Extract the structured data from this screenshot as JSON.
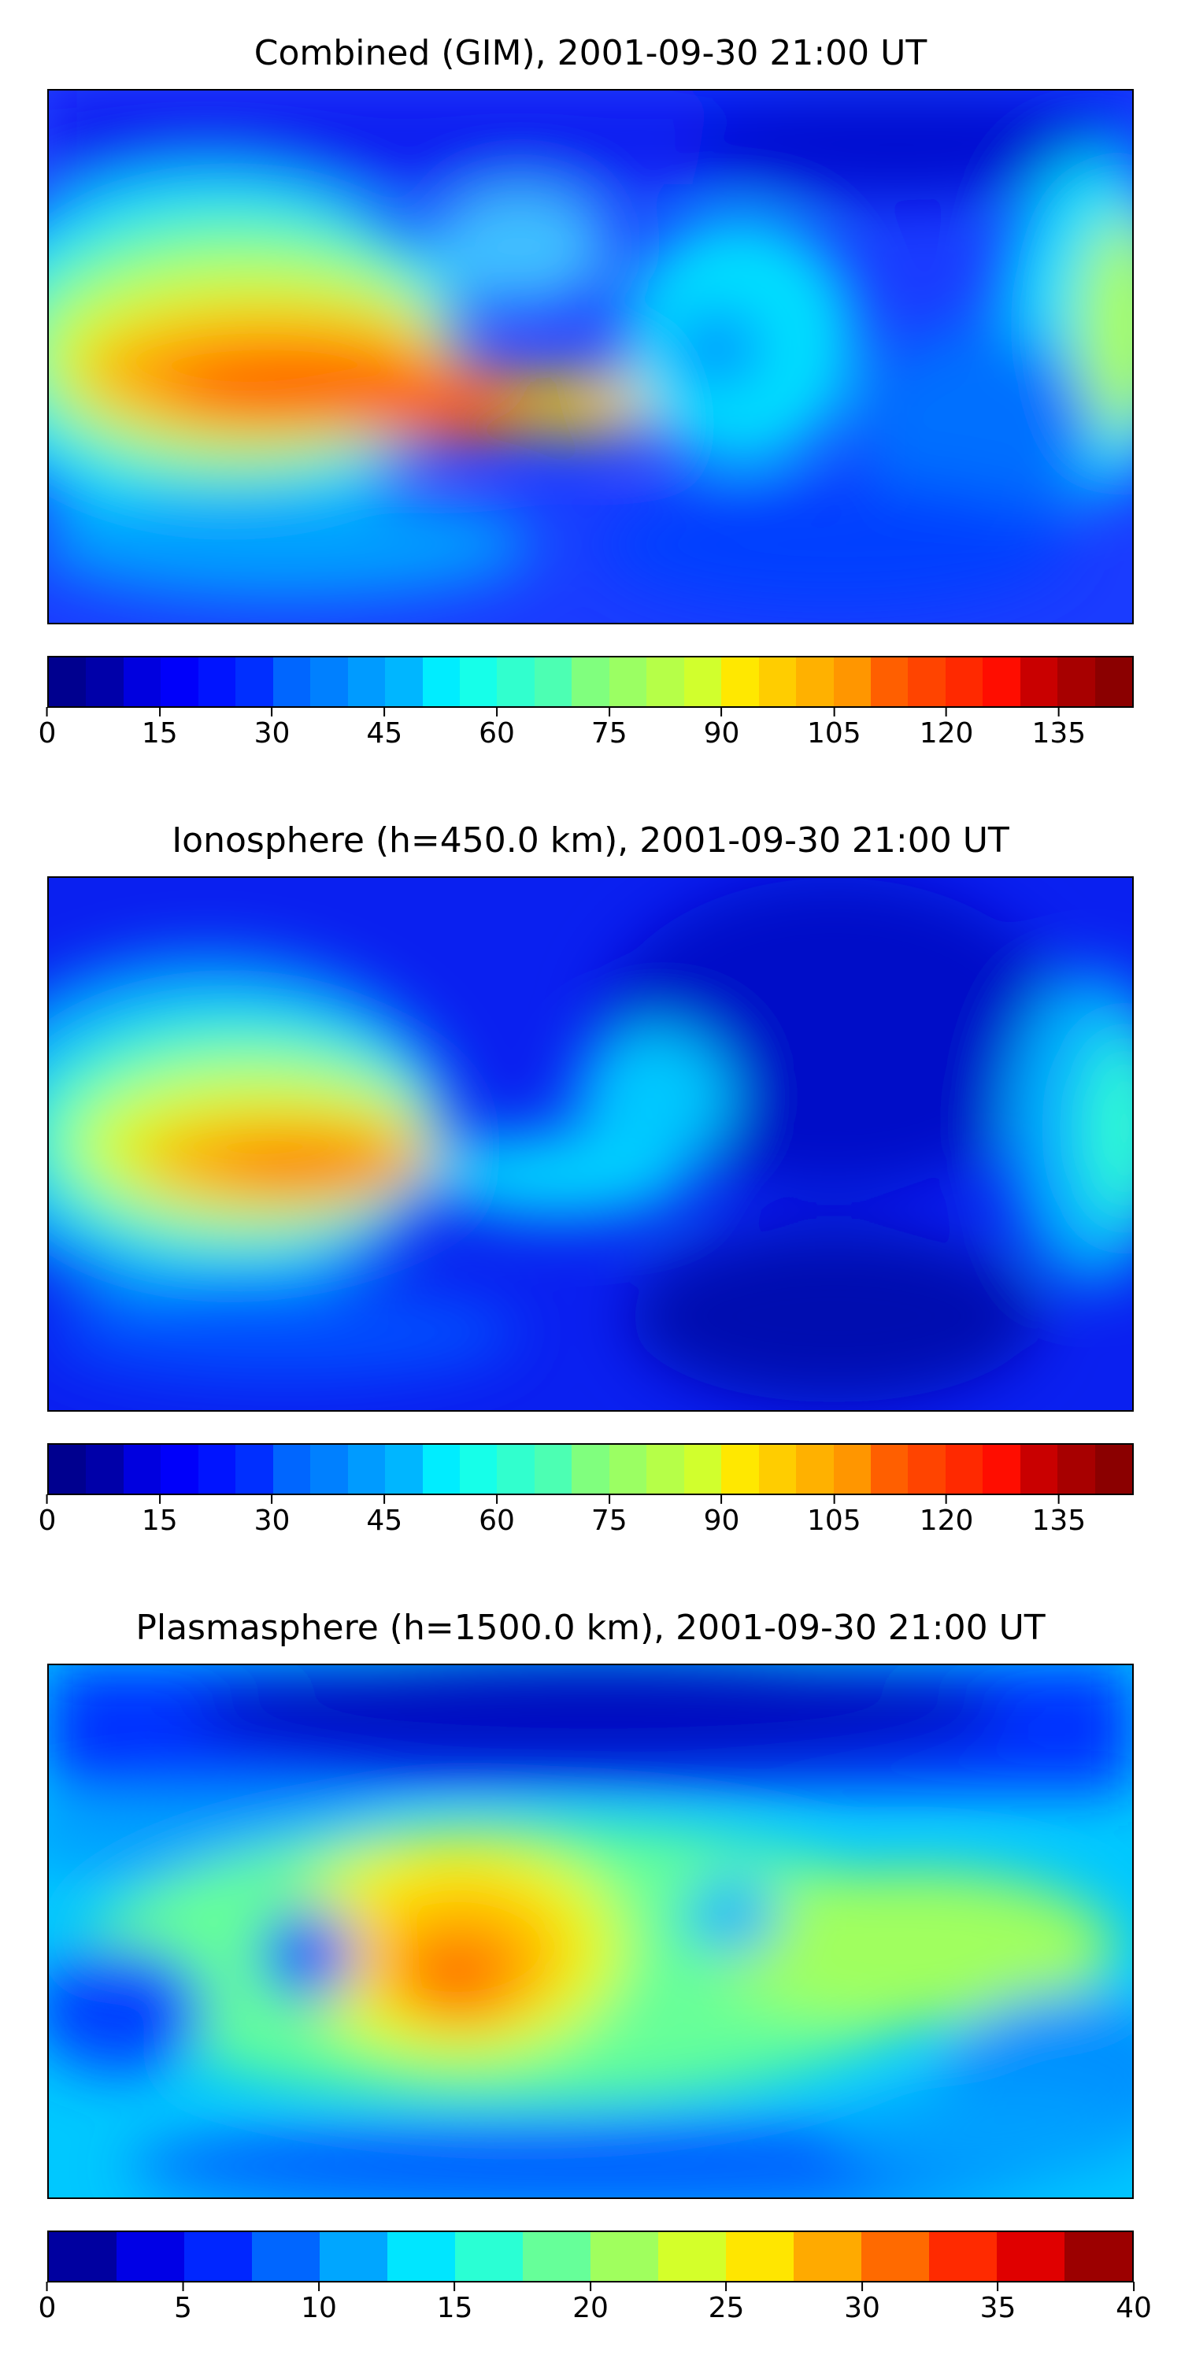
{
  "panels": [
    {
      "title": "Combined (GIM), 2001-09-30 21:00 UT",
      "levels": 29,
      "colorbar_ticks": [
        "0",
        "15",
        "30",
        "45",
        "60",
        "75",
        "90",
        "105",
        "120",
        "135"
      ],
      "tick_values": [
        0,
        15,
        30,
        45,
        60,
        75,
        90,
        105,
        120,
        135
      ],
      "vmin": 0,
      "vmax": 145,
      "colors": [
        "#00008f",
        "#0000a9",
        "#0000c4",
        "#0000df",
        "#0000fa",
        "#0014ff",
        "#002fff",
        "#004aff",
        "#0066ff",
        "#0080ff",
        "#009bff",
        "#00b6ff",
        "#00d1ff",
        "#00edff",
        "#16ffe9",
        "#31ffce",
        "#4cffb3",
        "#66ff99",
        "#80ff7e",
        "#9bff63",
        "#b6ff48",
        "#d1ff2d",
        "#edff12",
        "#ffe800",
        "#ffcd00",
        "#ffb100",
        "#ff9600",
        "#ff7b00",
        "#ff5f00",
        "#ff4400",
        "#ff2900",
        "#ff0d00",
        "#e80000",
        "#c90000",
        "#a70000",
        "#8b0000"
      ]
    },
    {
      "title": "Ionosphere  (h=450.0 km), 2001-09-30 21:00 UT",
      "levels": 29,
      "colorbar_ticks": [
        "0",
        "15",
        "30",
        "45",
        "60",
        "75",
        "90",
        "105",
        "120",
        "135"
      ],
      "tick_values": [
        0,
        15,
        30,
        45,
        60,
        75,
        90,
        105,
        120,
        135
      ],
      "vmin": 0,
      "vmax": 145,
      "colors": [
        "#00008f",
        "#0000a9",
        "#0000c4",
        "#0000df",
        "#0000fa",
        "#0014ff",
        "#002fff",
        "#004aff",
        "#0066ff",
        "#0080ff",
        "#009bff",
        "#00b6ff",
        "#00d1ff",
        "#00edff",
        "#16ffe9",
        "#31ffce",
        "#4cffb3",
        "#66ff99",
        "#80ff7e",
        "#9bff63",
        "#b6ff48",
        "#d1ff2d",
        "#edff12",
        "#ffe800",
        "#ffcd00",
        "#ffb100",
        "#ff9600",
        "#ff7b00",
        "#ff5f00",
        "#ff4400",
        "#ff2900",
        "#ff0d00",
        "#e80000",
        "#c90000",
        "#a70000",
        "#8b0000"
      ]
    },
    {
      "title": "Plasmasphere (h=1500.0 km), 2001-09-30 21:00 UT",
      "levels": 16,
      "colorbar_ticks": [
        "0",
        "5",
        "10",
        "15",
        "20",
        "25",
        "30",
        "35",
        "40"
      ],
      "tick_values": [
        0,
        5,
        10,
        15,
        20,
        25,
        30,
        35,
        40
      ],
      "vmin": 0,
      "vmax": 40,
      "colors": [
        "#0000a0",
        "#0000e6",
        "#0026ff",
        "#0066ff",
        "#00a6ff",
        "#00e6ff",
        "#2affd4",
        "#66ff99",
        "#a0ff5e",
        "#d4ff2a",
        "#ffe600",
        "#ffaa00",
        "#ff6a00",
        "#ff2a00",
        "#e00000",
        "#9c0000"
      ]
    }
  ]
}
